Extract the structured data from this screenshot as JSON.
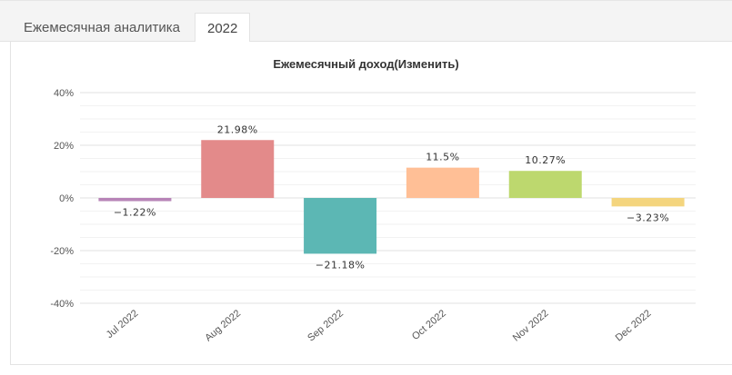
{
  "tabs": [
    {
      "label": "Ежемесячная аналитика",
      "active": false
    },
    {
      "label": "2022",
      "active": true
    }
  ],
  "chart_data": {
    "type": "bar",
    "title": "Ежемесячный доход(Изменить)",
    "categories": [
      "Jul 2022",
      "Aug 2022",
      "Sep 2022",
      "Oct 2022",
      "Nov 2022",
      "Dec 2022"
    ],
    "values": [
      -1.22,
      21.98,
      -21.18,
      11.5,
      10.27,
      -3.23
    ],
    "data_labels": [
      "-1.22%",
      "21.98%",
      "-21.18%",
      "11.5%",
      "10.27%",
      "-3.23%"
    ],
    "colors": [
      "#b784b7",
      "#e38a8a",
      "#5cb7b4",
      "#ffbf96",
      "#bdd86e",
      "#f4d57e"
    ],
    "ylim": [
      -40,
      40
    ],
    "yticks": [
      40,
      20,
      0,
      -20,
      -40
    ],
    "ytick_labels": [
      "40%",
      "20%",
      "0%",
      "-20%",
      "-40%"
    ],
    "grid": true,
    "xlabel": "",
    "ylabel": ""
  }
}
